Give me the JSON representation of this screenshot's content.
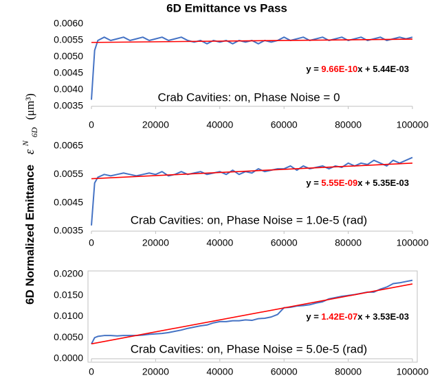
{
  "title": "6D Emittance vs Pass",
  "y_label": {
    "text": "6D Normalized Emittance",
    "symbol": "ε",
    "symbol_sup": "N",
    "symbol_sub": "6D",
    "unit": "(μm³)"
  },
  "chart_data": [
    {
      "type": "line",
      "xlim": [
        0,
        100000
      ],
      "xticks": [
        0,
        20000,
        40000,
        60000,
        80000,
        100000
      ],
      "ylim": [
        0.0035,
        0.006
      ],
      "yticks": [
        {
          "value": 0.0035,
          "label": "0.0035"
        },
        {
          "value": 0.004,
          "label": "0.0040"
        },
        {
          "value": 0.0045,
          "label": "0.0045"
        },
        {
          "value": 0.005,
          "label": "0.0050"
        },
        {
          "value": 0.0055,
          "label": "0.0055"
        },
        {
          "value": 0.006,
          "label": "0.0060"
        }
      ],
      "grid": false,
      "frame": false,
      "x": [
        0,
        1000,
        2000,
        4000,
        6000,
        8000,
        10000,
        12000,
        14000,
        16000,
        18000,
        20000,
        22000,
        24000,
        26000,
        28000,
        30000,
        32000,
        34000,
        36000,
        38000,
        40000,
        42000,
        44000,
        46000,
        48000,
        50000,
        52000,
        54000,
        56000,
        58000,
        60000,
        62000,
        64000,
        66000,
        68000,
        70000,
        72000,
        74000,
        76000,
        78000,
        80000,
        82000,
        84000,
        86000,
        88000,
        90000,
        92000,
        94000,
        96000,
        98000,
        100000
      ],
      "series": [
        {
          "color": "#4472c4",
          "values": [
            0.0037,
            0.0052,
            0.0055,
            0.0056,
            0.0055,
            0.00555,
            0.0056,
            0.0055,
            0.00555,
            0.0056,
            0.0055,
            0.00555,
            0.0056,
            0.0055,
            0.00555,
            0.0056,
            0.0055,
            0.00545,
            0.0055,
            0.0054,
            0.0055,
            0.00545,
            0.0055,
            0.0054,
            0.0055,
            0.00545,
            0.0055,
            0.0054,
            0.0055,
            0.00545,
            0.0055,
            0.0056,
            0.0055,
            0.00555,
            0.0056,
            0.0055,
            0.00555,
            0.0056,
            0.0055,
            0.00555,
            0.0056,
            0.0055,
            0.00555,
            0.0056,
            0.0055,
            0.00555,
            0.0056,
            0.0055,
            0.00555,
            0.0056,
            0.00555,
            0.0056
          ]
        },
        {
          "color": "#ff0000",
          "x": [
            0,
            100000
          ],
          "values": [
            0.00544,
            0.00554
          ]
        }
      ],
      "equation": [
        {
          "text": "y = "
        },
        {
          "text": "9.66E-10",
          "color": "#ff0000"
        },
        {
          "text": "x + 5.44E-03"
        }
      ],
      "annotation": "Crab Cavities: on, Phase Noise = 0"
    },
    {
      "type": "line",
      "xlim": [
        0,
        100000
      ],
      "xticks": [
        0,
        20000,
        40000,
        60000,
        80000,
        100000
      ],
      "ylim": [
        0.0035,
        0.0065
      ],
      "yticks": [
        {
          "value": 0.0035,
          "label": "0.0035"
        },
        {
          "value": 0.0045,
          "label": "0.0045"
        },
        {
          "value": 0.0055,
          "label": "0.0055"
        },
        {
          "value": 0.0065,
          "label": "0.0065"
        }
      ],
      "grid": false,
      "frame": false,
      "x": [
        0,
        1000,
        2000,
        4000,
        6000,
        8000,
        10000,
        12000,
        14000,
        16000,
        18000,
        20000,
        22000,
        24000,
        26000,
        28000,
        30000,
        32000,
        34000,
        36000,
        38000,
        40000,
        42000,
        44000,
        46000,
        48000,
        50000,
        52000,
        54000,
        56000,
        58000,
        60000,
        62000,
        64000,
        66000,
        68000,
        70000,
        72000,
        74000,
        76000,
        78000,
        80000,
        82000,
        84000,
        86000,
        88000,
        90000,
        92000,
        94000,
        96000,
        98000,
        100000
      ],
      "series": [
        {
          "color": "#4472c4",
          "values": [
            0.0037,
            0.0052,
            0.0054,
            0.0055,
            0.00545,
            0.0055,
            0.00555,
            0.0055,
            0.00545,
            0.0055,
            0.00555,
            0.0055,
            0.0056,
            0.00545,
            0.0055,
            0.0056,
            0.0055,
            0.00555,
            0.0056,
            0.0055,
            0.00555,
            0.0056,
            0.0055,
            0.00565,
            0.0055,
            0.0056,
            0.00555,
            0.0057,
            0.0056,
            0.00565,
            0.0057,
            0.0057,
            0.0058,
            0.00565,
            0.0058,
            0.0057,
            0.00575,
            0.0058,
            0.0057,
            0.0058,
            0.00575,
            0.0059,
            0.0058,
            0.0059,
            0.00585,
            0.006,
            0.0059,
            0.0058,
            0.006,
            0.0059,
            0.006,
            0.0061
          ]
        },
        {
          "color": "#ff0000",
          "x": [
            0,
            100000
          ],
          "values": [
            0.00535,
            0.0059
          ]
        }
      ],
      "equation": [
        {
          "text": "y = "
        },
        {
          "text": "5.55E-09",
          "color": "#ff0000"
        },
        {
          "text": "x + 5.35E-03"
        }
      ],
      "annotation": "Crab Cavities: on, Phase Noise = 1.0e-5 (rad)"
    },
    {
      "type": "line",
      "xlim": [
        0,
        100000
      ],
      "xticks": [
        0,
        20000,
        40000,
        60000,
        80000,
        100000
      ],
      "ylim": [
        0,
        0.02
      ],
      "yticks": [
        {
          "value": 0,
          "label": "0.0000"
        },
        {
          "value": 0.005,
          "label": "0.0050"
        },
        {
          "value": 0.01,
          "label": "0.0100"
        },
        {
          "value": 0.015,
          "label": "0.0150"
        },
        {
          "value": 0.02,
          "label": "0.0200"
        }
      ],
      "grid": false,
      "frame": true,
      "x": [
        0,
        1000,
        2000,
        4000,
        6000,
        8000,
        10000,
        12000,
        14000,
        16000,
        18000,
        20000,
        22000,
        24000,
        26000,
        28000,
        30000,
        32000,
        34000,
        36000,
        38000,
        40000,
        42000,
        44000,
        46000,
        48000,
        50000,
        52000,
        54000,
        56000,
        58000,
        60000,
        62000,
        64000,
        66000,
        68000,
        70000,
        72000,
        74000,
        76000,
        78000,
        80000,
        82000,
        84000,
        86000,
        88000,
        90000,
        92000,
        94000,
        96000,
        98000,
        100000
      ],
      "series": [
        {
          "color": "#4472c4",
          "values": [
            0.0035,
            0.005,
            0.0053,
            0.0055,
            0.0055,
            0.0054,
            0.0055,
            0.0055,
            0.0055,
            0.0056,
            0.0058,
            0.0059,
            0.006,
            0.0062,
            0.0065,
            0.0068,
            0.0072,
            0.0075,
            0.0078,
            0.008,
            0.0085,
            0.0088,
            0.0088,
            0.009,
            0.009,
            0.0092,
            0.0091,
            0.0095,
            0.0096,
            0.0099,
            0.0105,
            0.0121,
            0.0122,
            0.0125,
            0.0126,
            0.0128,
            0.0132,
            0.0135,
            0.0142,
            0.0145,
            0.0148,
            0.015,
            0.0152,
            0.0155,
            0.0158,
            0.0158,
            0.0165,
            0.017,
            0.0178,
            0.018,
            0.0183,
            0.0186
          ]
        },
        {
          "color": "#ff0000",
          "x": [
            0,
            100000
          ],
          "values": [
            0.00353,
            0.01773
          ]
        }
      ],
      "equation": [
        {
          "text": "y = "
        },
        {
          "text": "1.42E-07",
          "color": "#ff0000"
        },
        {
          "text": "x + 3.53E-03"
        }
      ],
      "annotation": "Crab Cavities: on, Phase Noise = 5.0e-5 (rad)"
    }
  ]
}
